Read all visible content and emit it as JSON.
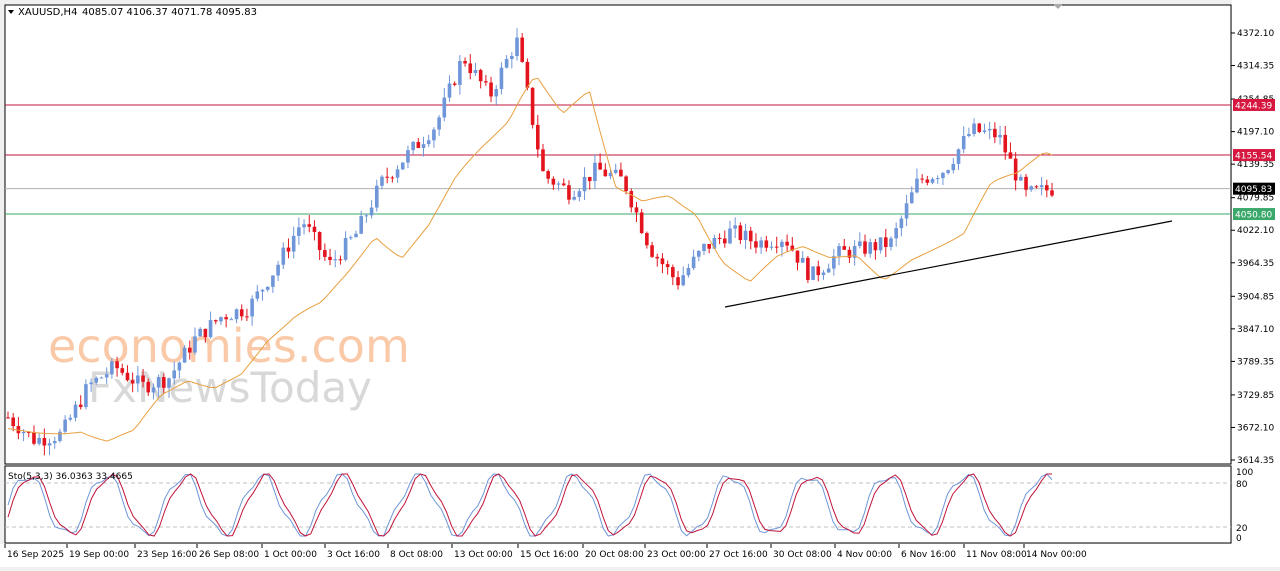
{
  "header": {
    "symbol_label": "XAUUSD,H4",
    "ohlc": "4085.07 4106.37 4071.78 4095.83"
  },
  "watermark": {
    "line1": "economies.com",
    "line2": "FxNewsToday"
  },
  "indicator": {
    "label": "Sto(5,3,3) 36.0363 33.4665",
    "levels": [
      "100",
      "80",
      "20",
      "0"
    ]
  },
  "colors": {
    "bull_candle": "#6f96d8",
    "bear_candle": "#e3141e",
    "ma": "#e8a040",
    "resistance": "#c0143c",
    "support": "#3aa86a",
    "current": "#b0b0b0",
    "trendline": "#000000",
    "stoch_main": "#6f96d8",
    "stoch_signal": "#c0143c"
  },
  "chart_data": {
    "type": "candlestick",
    "title": "XAUUSD,H4",
    "ohlc_last": {
      "open": 4085.07,
      "high": 4106.37,
      "low": 4071.78,
      "close": 4095.83
    },
    "price_axis_ticks": [
      "4372.10",
      "4314.35",
      "4254.85",
      "4197.10",
      "4139.35",
      "4079.85",
      "4022.10",
      "3964.35",
      "3904.85",
      "3847.10",
      "3789.35",
      "3729.85",
      "3672.10",
      "3614.35"
    ],
    "time_axis_ticks": [
      "16 Sep 2025",
      "19 Sep 00:00",
      "23 Sep 16:00",
      "26 Sep 08:00",
      "1 Oct 00:00",
      "3 Oct 16:00",
      "8 Oct 08:00",
      "13 Oct 00:00",
      "15 Oct 16:00",
      "20 Oct 08:00",
      "23 Oct 00:00",
      "27 Oct 16:00",
      "30 Oct 08:00",
      "4 Nov 00:00",
      "6 Nov 16:00",
      "11 Nov 08:00",
      "14 Nov 00:00"
    ],
    "horizontal_levels": [
      {
        "name": "resistance-1",
        "price": 4244.39,
        "label": "4244.39"
      },
      {
        "name": "resistance-2",
        "price": 4155.54,
        "label": "4155.54"
      },
      {
        "name": "current-price",
        "price": 4095.83,
        "label": "4095.83"
      },
      {
        "name": "support-1",
        "price": 4050.8,
        "label": "4050.80"
      }
    ],
    "trendline": {
      "from": {
        "date": "28 Oct",
        "price": 3887
      },
      "to": {
        "date": "18 Nov",
        "price": 4042
      }
    },
    "approx_close_path": [
      {
        "date": "16 Sep",
        "close": 3690
      },
      {
        "date": "18 Sep",
        "close": 3650
      },
      {
        "date": "19 Sep",
        "close": 3660
      },
      {
        "date": "22 Sep",
        "close": 3745
      },
      {
        "date": "23 Sep",
        "close": 3780
      },
      {
        "date": "25 Sep",
        "close": 3745
      },
      {
        "date": "26 Sep",
        "close": 3760
      },
      {
        "date": "29 Sep",
        "close": 3830
      },
      {
        "date": "1 Oct",
        "close": 3870
      },
      {
        "date": "3 Oct",
        "close": 3885
      },
      {
        "date": "6 Oct",
        "close": 3955
      },
      {
        "date": "8 Oct",
        "close": 4040
      },
      {
        "date": "9 Oct",
        "close": 3960
      },
      {
        "date": "10 Oct",
        "close": 4015
      },
      {
        "date": "13 Oct",
        "close": 4110
      },
      {
        "date": "14 Oct",
        "close": 4160
      },
      {
        "date": "15 Oct",
        "close": 4210
      },
      {
        "date": "16 Oct",
        "close": 4330
      },
      {
        "date": "17 Oct",
        "close": 4260
      },
      {
        "date": "20 Oct",
        "close": 4360
      },
      {
        "date": "21 Oct",
        "close": 4120
      },
      {
        "date": "22 Oct",
        "close": 4090
      },
      {
        "date": "23 Oct",
        "close": 4130
      },
      {
        "date": "24 Oct",
        "close": 4110
      },
      {
        "date": "27 Oct",
        "close": 3990
      },
      {
        "date": "28 Oct",
        "close": 3930
      },
      {
        "date": "29 Oct",
        "close": 3990
      },
      {
        "date": "30 Oct",
        "close": 4020
      },
      {
        "date": "31 Oct",
        "close": 4000
      },
      {
        "date": "3 Nov",
        "close": 4010
      },
      {
        "date": "4 Nov",
        "close": 3940
      },
      {
        "date": "5 Nov",
        "close": 3980
      },
      {
        "date": "6 Nov",
        "close": 3990
      },
      {
        "date": "7 Nov",
        "close": 4000
      },
      {
        "date": "10 Nov",
        "close": 4110
      },
      {
        "date": "11 Nov",
        "close": 4130
      },
      {
        "date": "12 Nov",
        "close": 4200
      },
      {
        "date": "13 Nov",
        "close": 4190
      },
      {
        "date": "14 Nov",
        "close": 4085
      },
      {
        "date": "17 Nov",
        "close": 4095.83
      }
    ],
    "moving_average": {
      "trend": "rising from ~3640 to peak ~4190 (21 Oct) then dips to ~3990 (6 Nov) and ends ~4080"
    },
    "subplot": {
      "name": "Stochastic",
      "params": "5,3,3",
      "main_value": 36.0363,
      "signal_value": 33.4665,
      "ylim": [
        0,
        100
      ],
      "levels": [
        20,
        80
      ]
    },
    "ylim": [
      3614.35,
      4400
    ],
    "xlabel": "",
    "ylabel": ""
  }
}
